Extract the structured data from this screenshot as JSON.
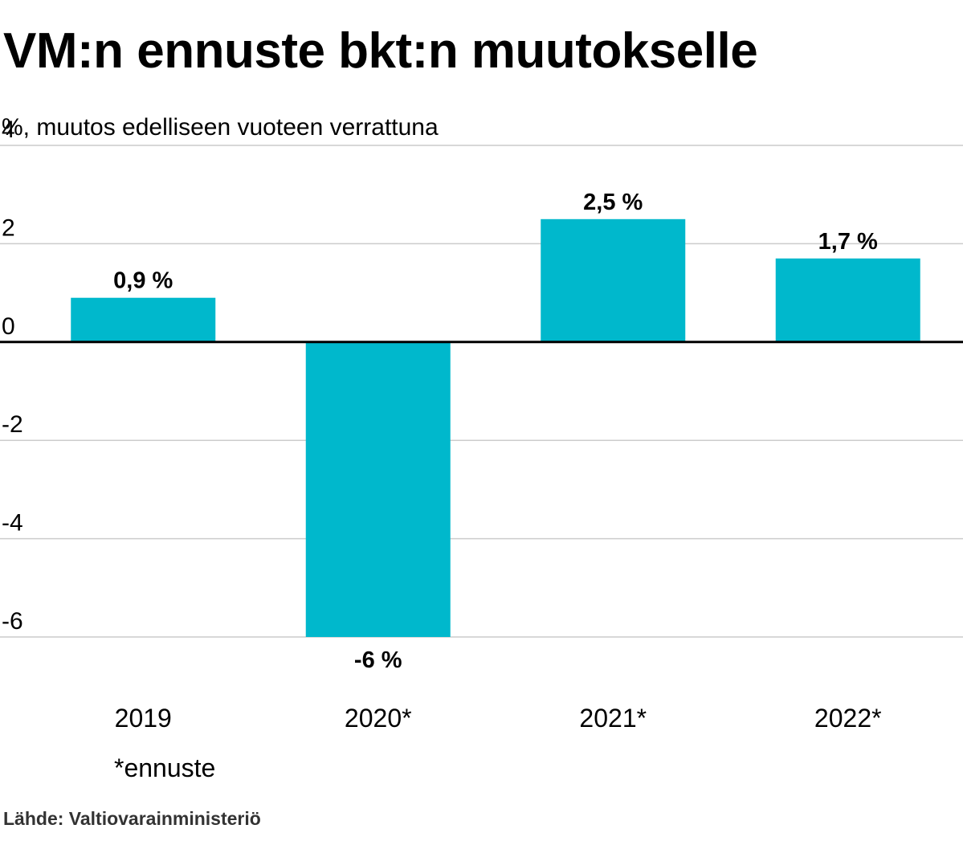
{
  "chart_data": {
    "type": "bar",
    "title": "VM:n ennuste bkt:n muutokselle",
    "subtitle": "%, muutos edelliseen vuoteen verrattuna",
    "categories": [
      "2019",
      "2020*",
      "2021*",
      "2022*"
    ],
    "values": [
      0.9,
      -6,
      2.5,
      1.7
    ],
    "data_labels": [
      "0,9 %",
      "-6 %",
      "2,5 %",
      "1,7 %"
    ],
    "yticks": [
      "4",
      "2",
      "0",
      "-2",
      "-4",
      "-6"
    ],
    "ytick_values": [
      4,
      2,
      0,
      -2,
      -4,
      -6
    ],
    "ylim": [
      -6,
      4
    ],
    "grid": true,
    "bar_color": "#00B8CC",
    "note": "*ennuste",
    "source": "Lähde: Valtiovarainministeriö"
  }
}
